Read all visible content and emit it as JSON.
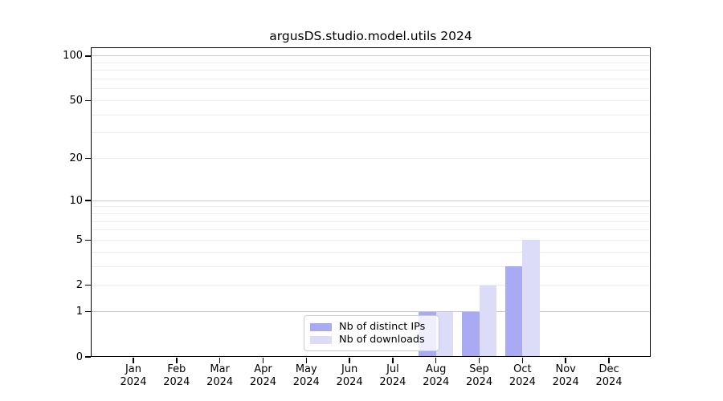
{
  "chart_data": {
    "type": "bar",
    "title": "argusDS.studio.model.utils 2024",
    "categories": [
      "Jan 2024",
      "Feb 2024",
      "Mar 2024",
      "Apr 2024",
      "May 2024",
      "Jun 2024",
      "Jul 2024",
      "Aug 2024",
      "Sep 2024",
      "Oct 2024",
      "Nov 2024",
      "Dec 2024"
    ],
    "series": [
      {
        "name": "Nb of distinct IPs",
        "color": "#a9a9f4",
        "values": [
          0,
          0,
          0,
          0,
          0,
          0,
          0,
          1,
          1,
          3,
          0,
          0
        ]
      },
      {
        "name": "Nb of downloads",
        "color": "#dcdcf8",
        "values": [
          0,
          0,
          0,
          0,
          0,
          0,
          0,
          1,
          2,
          5,
          0,
          0
        ]
      }
    ],
    "yscale": "log1p",
    "ylim": [
      0,
      115
    ],
    "ytick_labels": [
      "100",
      "50",
      "20",
      "10",
      "5",
      "2",
      "1",
      "0"
    ],
    "grid_major_values": [
      1,
      10,
      100
    ],
    "grid_minor_values": [
      2,
      3,
      4,
      5,
      6,
      7,
      8,
      9,
      20,
      30,
      40,
      50,
      60,
      70,
      80,
      90
    ],
    "legend_position": "lower center",
    "colors": {
      "grid_major": "#c9c9c9",
      "grid_minor": "#ededed",
      "spine": "#000000",
      "background": "#ffffff"
    }
  }
}
